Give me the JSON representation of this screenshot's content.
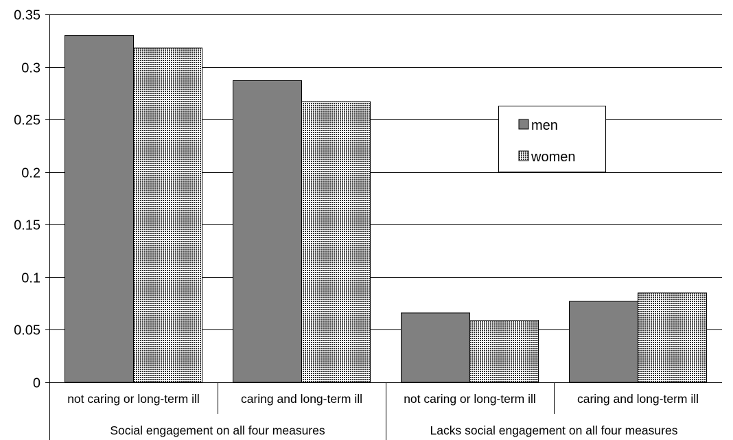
{
  "chart_data": {
    "type": "bar",
    "categories": [
      "not caring or long-term ill",
      "caring and long-term ill",
      "not caring or long-term ill",
      "caring and long-term ill"
    ],
    "groups": [
      "Social engagement on all four measures",
      "Lacks social engagement on all four measures"
    ],
    "series": [
      {
        "name": "men",
        "values": [
          0.33,
          0.287,
          0.066,
          0.077
        ],
        "color": "#808080",
        "pattern": "solid"
      },
      {
        "name": "women",
        "values": [
          0.318,
          0.267,
          0.059,
          0.085
        ],
        "color": "#ffffff",
        "pattern": "checkered"
      }
    ],
    "yticks": [
      "0",
      "0.05",
      "0.1",
      "0.15",
      "0.2",
      "0.25",
      "0.3",
      "0.35"
    ],
    "ylim": [
      0,
      0.35
    ],
    "grid": true,
    "legend_position": "top-right"
  }
}
